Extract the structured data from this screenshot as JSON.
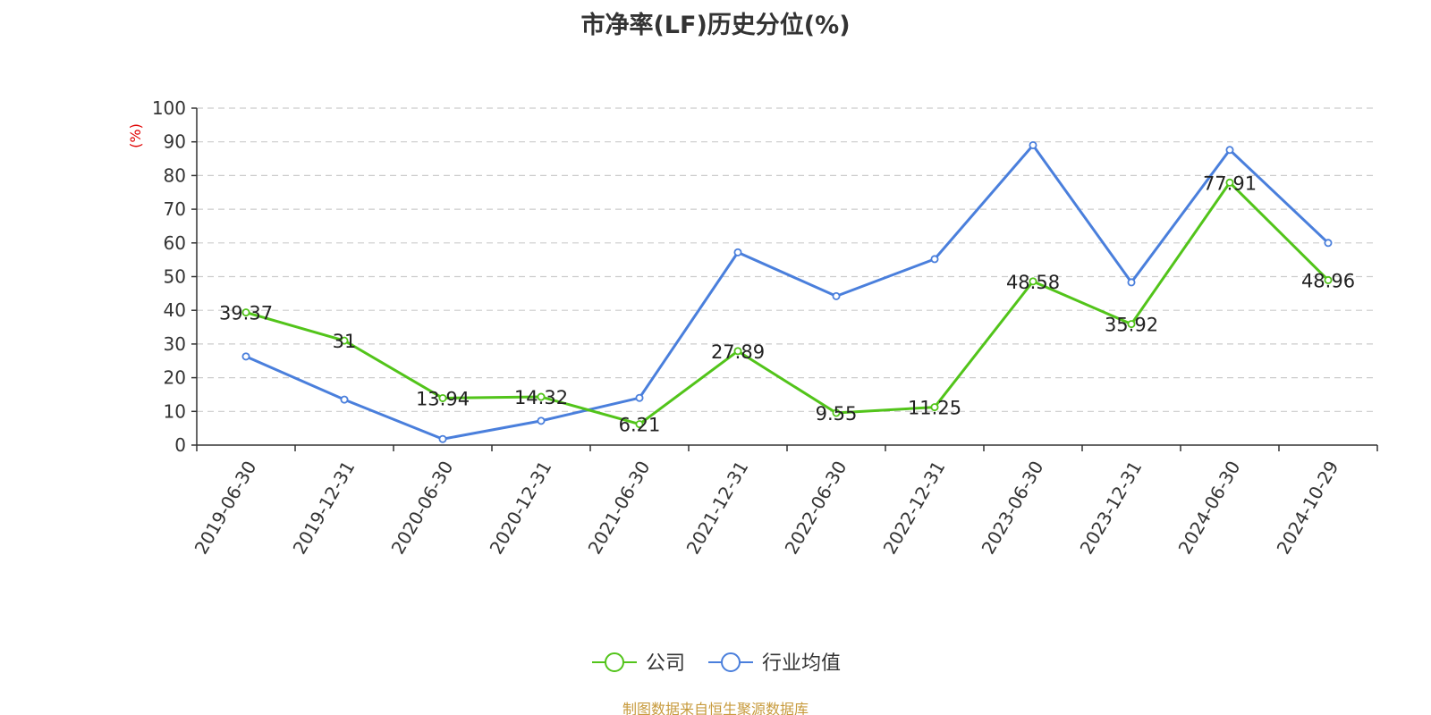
{
  "chart_data": {
    "type": "line",
    "title": "市净率(LF)历史分位(%)",
    "ylabel": "(%)",
    "xlabel": "",
    "ylim": [
      0,
      100
    ],
    "yticks": [
      0,
      10,
      20,
      30,
      40,
      50,
      60,
      70,
      80,
      90,
      100
    ],
    "categories": [
      "2019-06-30",
      "2019-12-31",
      "2020-06-30",
      "2020-12-31",
      "2021-06-30",
      "2021-12-31",
      "2022-06-30",
      "2022-12-31",
      "2023-06-30",
      "2023-12-31",
      "2024-06-30",
      "2024-10-29"
    ],
    "series": [
      {
        "name": "公司",
        "color": "#52c41a",
        "values": [
          39.37,
          31,
          13.94,
          14.32,
          6.21,
          27.89,
          9.55,
          11.25,
          48.58,
          35.92,
          77.91,
          48.96
        ],
        "labels": [
          "39.37",
          "31",
          "13.94",
          "14.32",
          "6.21",
          "27.89",
          "9.55",
          "11.25",
          "48.58",
          "35.92",
          "77.91",
          "48.96"
        ]
      },
      {
        "name": "行业均值",
        "color": "#4a7fdc",
        "values": [
          26.3,
          13.5,
          1.8,
          7.2,
          14.0,
          57.2,
          44.2,
          55.2,
          89.0,
          48.3,
          87.6,
          60.0
        ]
      }
    ],
    "grid": true,
    "legend_position": "bottom"
  },
  "source": "制图数据来自恒生聚源数据库"
}
